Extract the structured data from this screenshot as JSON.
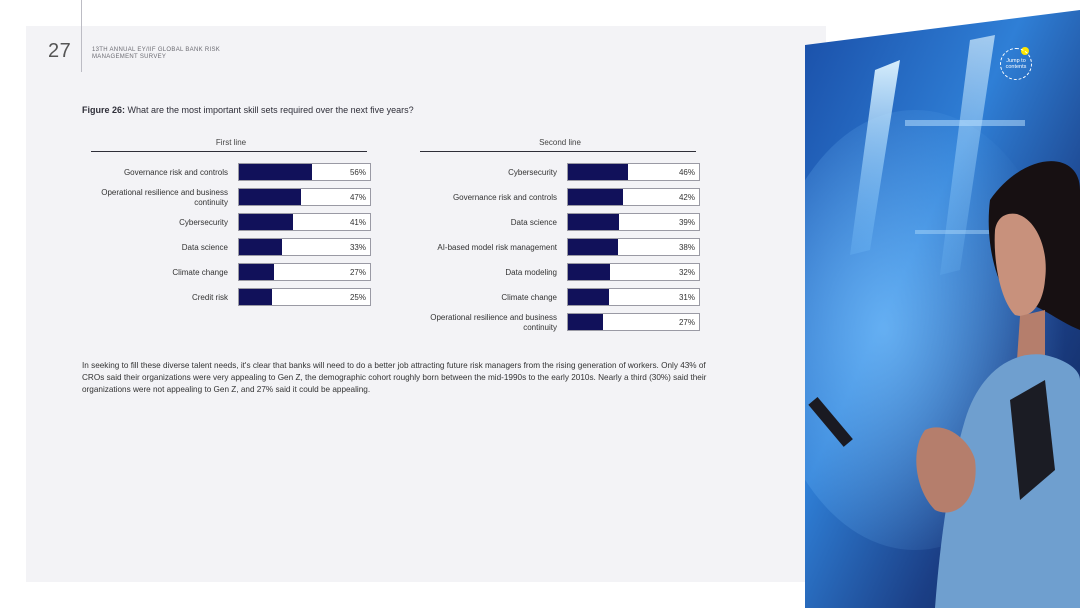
{
  "header": {
    "page_number": "27",
    "report_title": "13TH ANNUAL EY/IIF GLOBAL BANK RISK MANAGEMENT SURVEY"
  },
  "figure": {
    "label": "Figure 26:",
    "question": " What are the most important skill sets required over the next five years?"
  },
  "chart_data": [
    {
      "type": "bar",
      "title": "First line",
      "categories": [
        "Governance risk and controls",
        "Operational resilience and business continuity",
        "Cybersecurity",
        "Data science",
        "Climate change",
        "Credit risk"
      ],
      "values": [
        56,
        47,
        41,
        33,
        27,
        25
      ],
      "value_labels": [
        "56%",
        "47%",
        "41%",
        "33%",
        "27%",
        "25%"
      ],
      "xlim": [
        0,
        100
      ],
      "bar_color": "#11115a"
    },
    {
      "type": "bar",
      "title": "Second line",
      "categories": [
        "Cybersecurity",
        "Governance risk and controls",
        "Data science",
        "AI-based model risk management",
        "Data modeling",
        "Climate change",
        "Operational resilience and business continuity"
      ],
      "values": [
        46,
        42,
        39,
        38,
        32,
        31,
        27
      ],
      "value_labels": [
        "46%",
        "42%",
        "39%",
        "38%",
        "32%",
        "31%",
        "27%"
      ],
      "xlim": [
        0,
        100
      ],
      "bar_color": "#11115a"
    }
  ],
  "body_text": "In seeking to fill these diverse talent needs, it's clear that banks will need to do a better job attracting future risk managers from the rising generation of workers. Only 43% of CROs said their organizations were very appealing to Gen Z, the demographic cohort roughly born between the mid-1990s to the early 2010s. Nearly a third (30%) said their organizations were not appealing to Gen Z, and 27% said it could be appealing.",
  "nav": {
    "jump_label": "Jump to contents"
  },
  "colors": {
    "accent": "#ffe600",
    "bar": "#11115a",
    "panel": "#f3f3f6"
  }
}
